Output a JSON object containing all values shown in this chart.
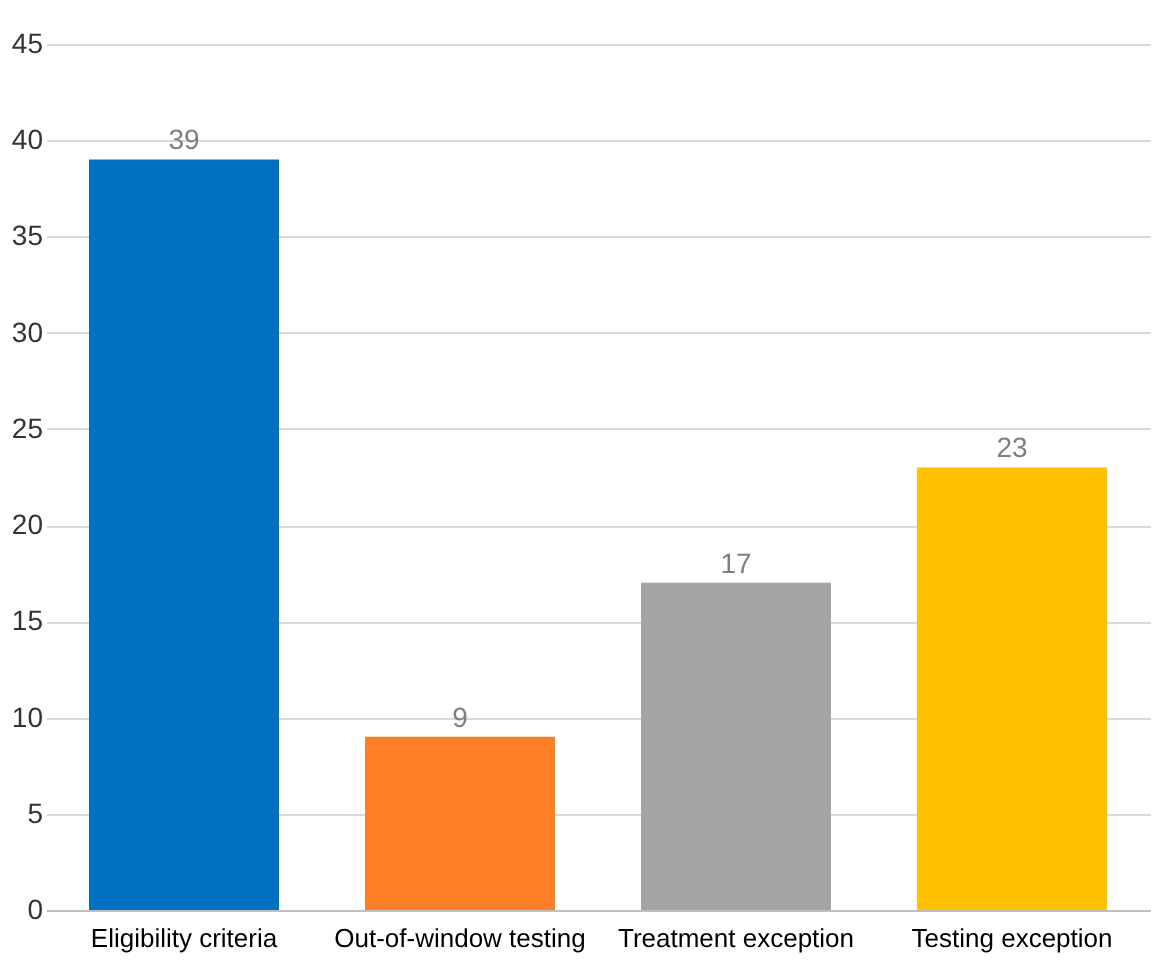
{
  "chart_data": {
    "type": "bar",
    "categories": [
      "Eligibility criteria",
      "Out-of-window testing",
      "Treatment exception",
      "Testing exception"
    ],
    "values": [
      39,
      9,
      17,
      23
    ],
    "colors": [
      "#0070c0",
      "#ff7f27",
      "#a5a5a5",
      "#ffc000"
    ],
    "ylim": [
      0,
      45
    ],
    "yticks": [
      0,
      5,
      10,
      15,
      20,
      25,
      30,
      35,
      40,
      45
    ],
    "grid": "y",
    "data_labels": true
  }
}
